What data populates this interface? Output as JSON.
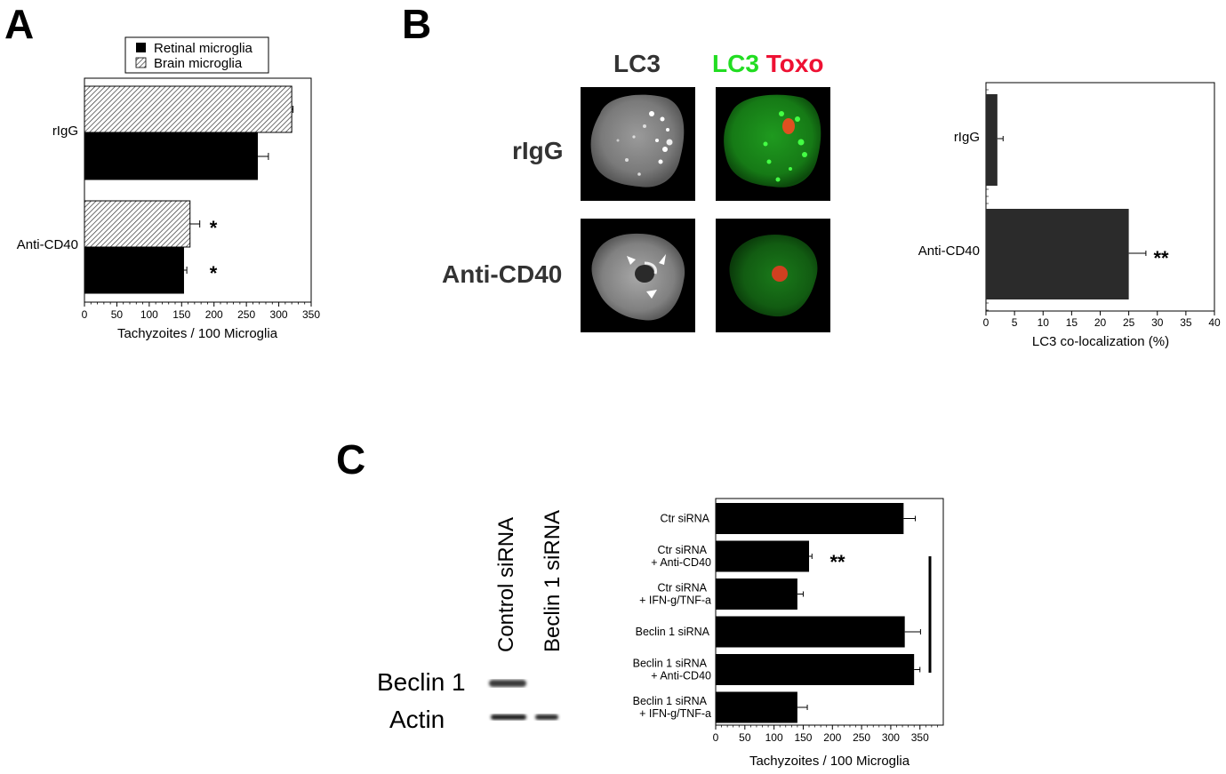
{
  "panels": {
    "a": "A",
    "b": "B",
    "c": "C"
  },
  "colors": {
    "bar_dark": "#000000",
    "bar_gray": "#2b2b2b",
    "lc3_green": "#22dd22",
    "toxo_red": "#ee1133"
  },
  "panel_b_images": {
    "col_lc3": "LC3",
    "col_merge_lc3": "LC3",
    "col_merge_toxo": "Toxo",
    "row_rigg": "rIgG",
    "row_anticd40": "Anti-CD40"
  },
  "panel_c_blot": {
    "lanes": [
      "Control siRNA",
      "Beclin 1 siRNA"
    ],
    "rows": [
      "Beclin 1",
      "Actin"
    ]
  },
  "chart_data": [
    {
      "panel": "A",
      "type": "bar",
      "orientation": "horizontal",
      "categories": [
        "rIgG",
        "Anti-CD40"
      ],
      "series": [
        {
          "name": "Brain microglia",
          "values": [
            320,
            163
          ],
          "errors": [
            2,
            15
          ],
          "pattern": "hatched"
        },
        {
          "name": "Retinal microglia",
          "values": [
            267,
            153
          ],
          "errors": [
            17,
            5
          ],
          "pattern": "solid"
        }
      ],
      "annotations": [
        "*",
        "*"
      ],
      "xlabel": "Tachyzoites / 100 Microglia",
      "xticks": [
        "0",
        "50",
        "100",
        "150",
        "200",
        "250",
        "300",
        "350"
      ],
      "xlim": [
        0,
        350
      ],
      "legend": [
        "Retinal microglia",
        "Brain microglia"
      ],
      "legend_position": "top"
    },
    {
      "panel": "B",
      "type": "bar",
      "orientation": "horizontal",
      "categories": [
        "rIgG",
        "Anti-CD40"
      ],
      "values": [
        2,
        25
      ],
      "errors": [
        1,
        3
      ],
      "annotations": [
        "",
        "**"
      ],
      "xlabel": "LC3 co-localization (%)",
      "xticks": [
        "0",
        "5",
        "10",
        "15",
        "20",
        "25",
        "30",
        "35",
        "40"
      ],
      "xlim": [
        0,
        40
      ]
    },
    {
      "panel": "C",
      "type": "bar",
      "orientation": "horizontal",
      "categories": [
        [
          "Ctr siRNA"
        ],
        [
          "Ctr siRNA",
          "+ Anti-CD40"
        ],
        [
          "Ctr siRNA",
          "+ IFN-g/TNF-a"
        ],
        [
          "Beclin 1 siRNA"
        ],
        [
          "Beclin 1 siRNA",
          "+ Anti-CD40"
        ],
        [
          "Beclin 1 siRNA",
          "+ IFN-g/TNF-a"
        ]
      ],
      "values": [
        322,
        160,
        140,
        324,
        340,
        140
      ],
      "errors": [
        20,
        5,
        10,
        27,
        10,
        17
      ],
      "annotations": [
        "",
        "**",
        "",
        "",
        "",
        ""
      ],
      "xlabel": "Tachyzoites / 100 Microglia",
      "xticks": [
        "0",
        "50",
        "100",
        "150",
        "200",
        "250",
        "300",
        "350"
      ],
      "xlim": [
        0,
        390
      ]
    }
  ]
}
